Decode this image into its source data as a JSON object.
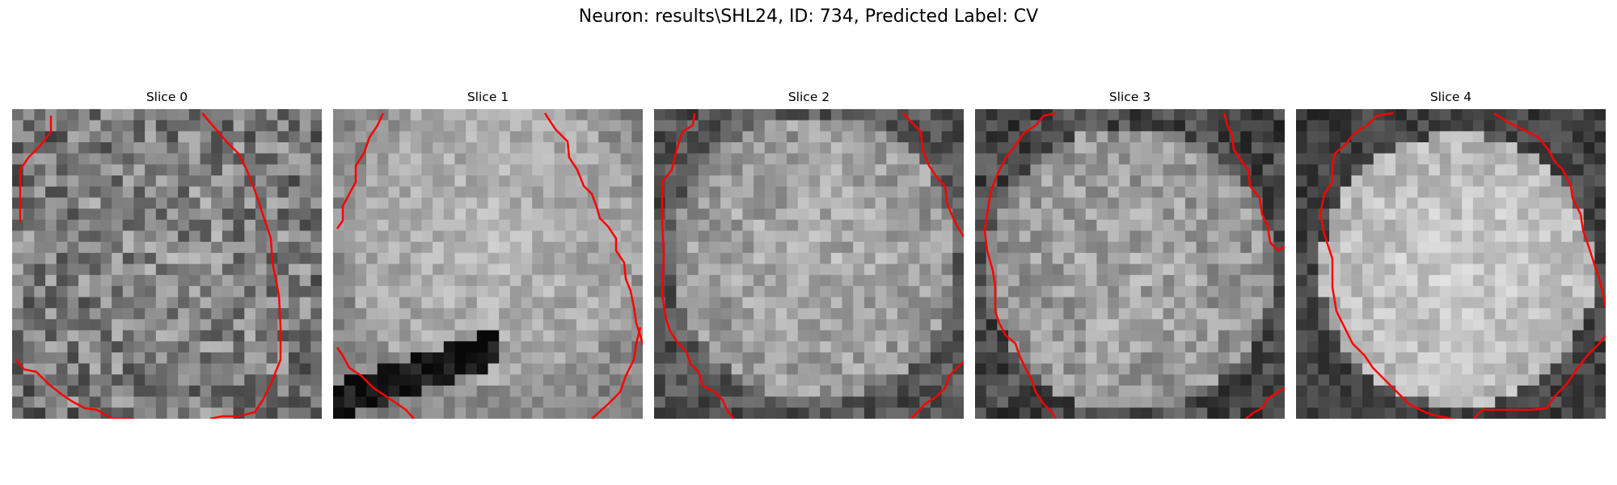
{
  "figure": {
    "suptitle": "Neuron: results\\SHL24, ID: 734, Predicted Label: CV",
    "outline_color": "#ff0000",
    "colormap": "gray",
    "panels": [
      {
        "title": "Slice 0"
      },
      {
        "title": "Slice 1"
      },
      {
        "title": "Slice 2"
      },
      {
        "title": "Slice 3"
      },
      {
        "title": "Slice 4"
      }
    ]
  }
}
